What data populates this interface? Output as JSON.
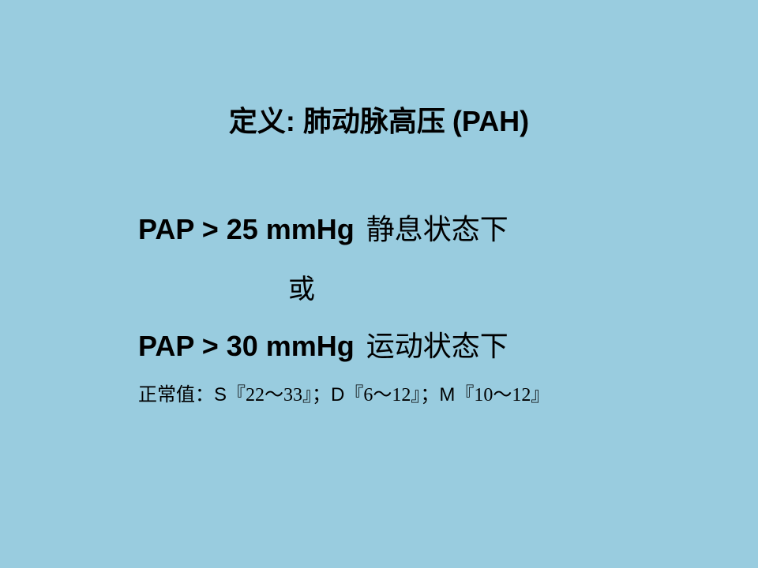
{
  "slide": {
    "background_color": "#99ccdf",
    "title": {
      "prefix": "定义",
      "colon": ": ",
      "body": "肺动脉高压 ",
      "abbrev": "(PAH)",
      "fontsize": 36
    },
    "criteria": [
      {
        "measure": "PAP > 25 mmHg",
        "condition": "静息状态下",
        "fontsize": 36
      },
      {
        "measure": "PAP > 30 mmHg",
        "condition": "运动状态下",
        "fontsize": 36
      }
    ],
    "connector": "或",
    "normal_values": {
      "label": "正常值：",
      "s_label": "S",
      "s_range": "『22～33』",
      "sep1": "；",
      "d_label": "D",
      "d_range": "『6～12』",
      "sep2": "；",
      "m_label": "M",
      "m_range": "『10～12』",
      "fontsize": 24
    },
    "text_color": "#000000"
  }
}
